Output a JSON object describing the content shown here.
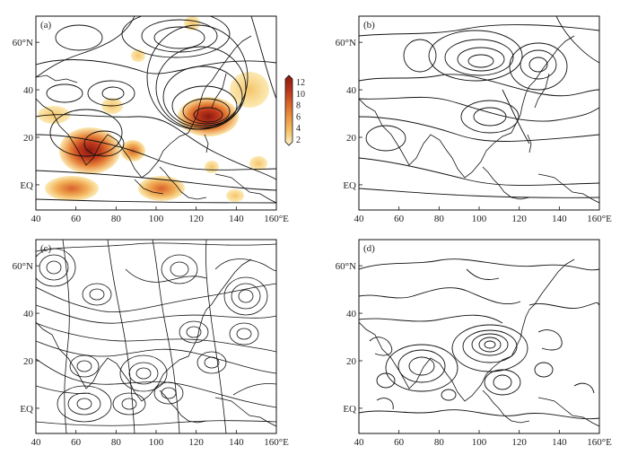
{
  "panels": [
    {
      "id": "a",
      "label": "(a)"
    },
    {
      "id": "b",
      "label": "(b)"
    },
    {
      "id": "c",
      "label": "(c)"
    },
    {
      "id": "d",
      "label": "(d)"
    }
  ],
  "x_ticks": [
    "40",
    "60",
    "80",
    "100",
    "120",
    "140",
    "160°E"
  ],
  "y_ticks": [
    "60°N",
    "40",
    "20",
    "EQ"
  ],
  "colorbar": {
    "ticks": [
      "12",
      "10",
      "8",
      "6",
      "4",
      "2"
    ],
    "colors": [
      "#8b1a10",
      "#b8321a",
      "#d9622a",
      "#ec9440",
      "#f5c46a",
      "#fbe6a6"
    ]
  },
  "colors": {
    "contour": "#111111",
    "shading_light": "#fbe6a6",
    "shading_dark": "#8b1a10"
  }
}
